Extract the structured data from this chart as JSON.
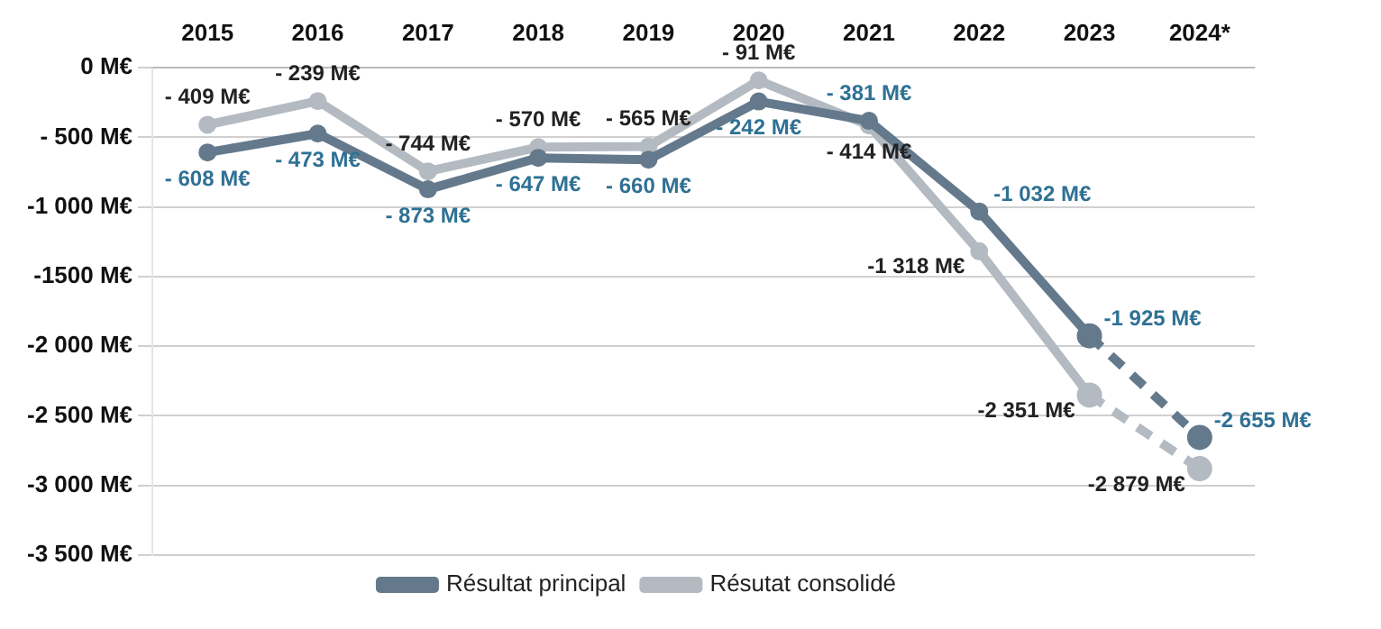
{
  "chart_data": {
    "type": "line",
    "categories": [
      "2015",
      "2016",
      "2017",
      "2018",
      "2019",
      "2020",
      "2021",
      "2022",
      "2023",
      "2024*"
    ],
    "series": [
      {
        "name": "Résultat principal",
        "color": "#64798b",
        "line_style": "solid",
        "values": [
          -608,
          -473,
          -873,
          -647,
          -660,
          -242,
          -381,
          -1032,
          -1925,
          null
        ],
        "value_labels": [
          "- 608 M€",
          "- 473 M€",
          "- 873 M€",
          "- 647 M€",
          "- 660 M€",
          "- 242 M€",
          "- 381 M€",
          "-1 032 M€",
          "-1 925 M€",
          null
        ]
      },
      {
        "name": "Résutat consolidé",
        "color": "#b4bac1",
        "line_style": "solid",
        "values": [
          -409,
          -239,
          -744,
          -570,
          -565,
          -91,
          -414,
          -1318,
          -2351,
          null
        ],
        "value_labels": [
          "- 409 M€",
          "- 239 M€",
          "- 744 M€",
          "- 570 M€",
          "- 565 M€",
          "- 91 M€",
          "- 414 M€",
          "-1 318 M€",
          "-2 351 M€",
          null
        ]
      },
      {
        "color": "#64798b",
        "line_style": "dashed",
        "values": [
          null,
          null,
          null,
          null,
          null,
          null,
          null,
          null,
          -1925,
          -2655
        ],
        "value_labels": [
          null,
          null,
          null,
          null,
          null,
          null,
          null,
          null,
          null,
          "-2 655 M€"
        ]
      },
      {
        "color": "#b4bac1",
        "line_style": "dashed",
        "values": [
          null,
          null,
          null,
          null,
          null,
          null,
          null,
          null,
          -2351,
          -2879
        ],
        "value_labels": [
          null,
          null,
          null,
          null,
          null,
          null,
          null,
          null,
          null,
          "-2 879 M€"
        ]
      }
    ],
    "ylim": [
      -3500,
      0
    ],
    "yticks": [
      {
        "value": 0,
        "label": "0 M€"
      },
      {
        "value": -500,
        "label": "- 500 M€"
      },
      {
        "value": -1000,
        "label": "-1 000 M€"
      },
      {
        "value": -1500,
        "label": "-1500 M€"
      },
      {
        "value": -2000,
        "label": "-2 000 M€"
      },
      {
        "value": -2500,
        "label": "-2 500 M€"
      },
      {
        "value": -3000,
        "label": "-3 000 M€"
      },
      {
        "value": -3500,
        "label": "-3 500 M€"
      }
    ],
    "grid": "y",
    "legend": "bottom",
    "marker": "circle"
  }
}
